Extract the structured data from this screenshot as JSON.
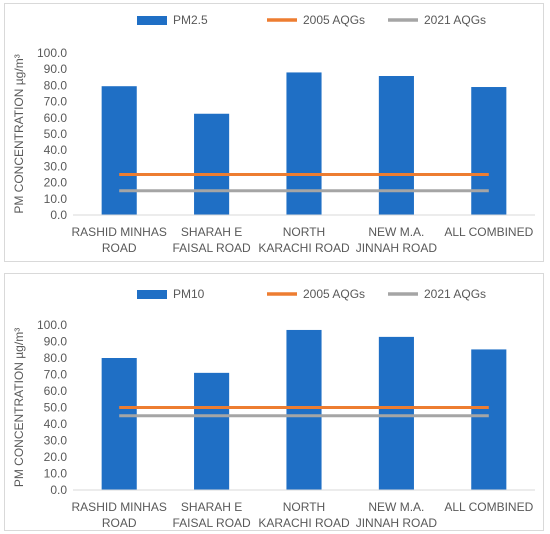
{
  "chart_data": [
    {
      "type": "bar",
      "categories": [
        [
          "RASHID MINHAS",
          "ROAD"
        ],
        [
          "SHARAH E",
          "FAISAL ROAD"
        ],
        [
          "NORTH",
          "KARACHI ROAD"
        ],
        [
          "NEW M.A.",
          "JINNAH ROAD"
        ],
        [
          "ALL COMBINED"
        ]
      ],
      "series": [
        {
          "name": "PM2.5",
          "kind": "bar",
          "color": "#1f6fc5",
          "values": [
            79.5,
            62.5,
            88.0,
            85.8,
            79.0
          ]
        },
        {
          "name": "2005 AQGs",
          "kind": "line",
          "color": "#ed7d31",
          "values": [
            25,
            25,
            25,
            25,
            25
          ]
        },
        {
          "name": "2021 AQGs",
          "kind": "line",
          "color": "#a5a5a5",
          "values": [
            15,
            15,
            15,
            15,
            15
          ]
        }
      ],
      "ylabel": "PM CONCENTRATION µg/m³",
      "ylim": [
        0,
        100
      ],
      "yticks": [
        "0.0",
        "10.0",
        "20.0",
        "30.0",
        "40.0",
        "50.0",
        "60.0",
        "70.0",
        "80.0",
        "90.0",
        "100.0"
      ],
      "grid": false,
      "legend": "top"
    },
    {
      "type": "bar",
      "categories": [
        [
          "RASHID MINHAS",
          "ROAD"
        ],
        [
          "SHARAH E",
          "FAISAL ROAD"
        ],
        [
          "NORTH",
          "KARACHI ROAD"
        ],
        [
          "NEW M.A.",
          "JINNAH ROAD"
        ],
        [
          "ALL COMBINED"
        ]
      ],
      "series": [
        {
          "name": "PM10",
          "kind": "bar",
          "color": "#1f6fc5",
          "values": [
            80.0,
            71.0,
            97.0,
            92.8,
            85.2
          ]
        },
        {
          "name": "2005 AQGs",
          "kind": "line",
          "color": "#ed7d31",
          "values": [
            50,
            50,
            50,
            50,
            50
          ]
        },
        {
          "name": "2021 AQGs",
          "kind": "line",
          "color": "#a5a5a5",
          "values": [
            45,
            45,
            45,
            45,
            45
          ]
        }
      ],
      "ylabel": "PM CONCENTRATION µg/m³",
      "ylim": [
        0,
        100
      ],
      "yticks": [
        "0.0",
        "10.0",
        "20.0",
        "30.0",
        "40.0",
        "50.0",
        "60.0",
        "70.0",
        "80.0",
        "90.0",
        "100.0"
      ],
      "grid": false,
      "legend": "top"
    }
  ]
}
